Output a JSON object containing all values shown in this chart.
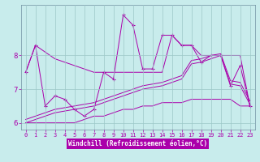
{
  "xlabel": "Windchill (Refroidissement éolien,°C)",
  "background_color": "#c8ecec",
  "line_color": "#aa00aa",
  "main_y": [
    7.5,
    8.3,
    6.5,
    6.8,
    6.7,
    6.4,
    6.2,
    6.4,
    7.5,
    7.3,
    9.2,
    8.9,
    7.6,
    7.6,
    8.6,
    8.6,
    8.3,
    8.3,
    7.8,
    8.0,
    8.0,
    7.1,
    7.7,
    6.5
  ],
  "upper_env": [
    7.5,
    8.3,
    8.1,
    7.9,
    7.8,
    7.7,
    7.6,
    7.5,
    7.5,
    7.5,
    7.5,
    7.5,
    7.5,
    7.5,
    7.5,
    8.6,
    8.3,
    8.3,
    8.0,
    8.0,
    8.0,
    8.0,
    8.0,
    6.5
  ],
  "lower_env": [
    6.0,
    6.0,
    6.0,
    6.0,
    6.0,
    6.0,
    6.1,
    6.2,
    6.2,
    6.3,
    6.4,
    6.4,
    6.5,
    6.5,
    6.6,
    6.6,
    6.6,
    6.7,
    6.7,
    6.7,
    6.7,
    6.7,
    6.5,
    6.5
  ],
  "trend1": [
    6.0,
    6.1,
    6.2,
    6.3,
    6.35,
    6.4,
    6.45,
    6.5,
    6.6,
    6.7,
    6.8,
    6.9,
    7.0,
    7.05,
    7.1,
    7.2,
    7.3,
    7.75,
    7.8,
    7.9,
    8.0,
    7.15,
    7.1,
    6.55
  ],
  "trend2": [
    6.1,
    6.2,
    6.3,
    6.4,
    6.45,
    6.5,
    6.55,
    6.6,
    6.7,
    6.8,
    6.9,
    7.0,
    7.1,
    7.15,
    7.2,
    7.3,
    7.4,
    7.85,
    7.9,
    8.0,
    8.05,
    7.25,
    7.2,
    6.65
  ],
  "ylim": [
    5.8,
    9.5
  ],
  "yticks": [
    6,
    7,
    8
  ],
  "xticks": [
    0,
    1,
    2,
    3,
    4,
    5,
    6,
    7,
    8,
    9,
    10,
    11,
    12,
    13,
    14,
    15,
    16,
    17,
    18,
    19,
    20,
    21,
    22,
    23
  ]
}
